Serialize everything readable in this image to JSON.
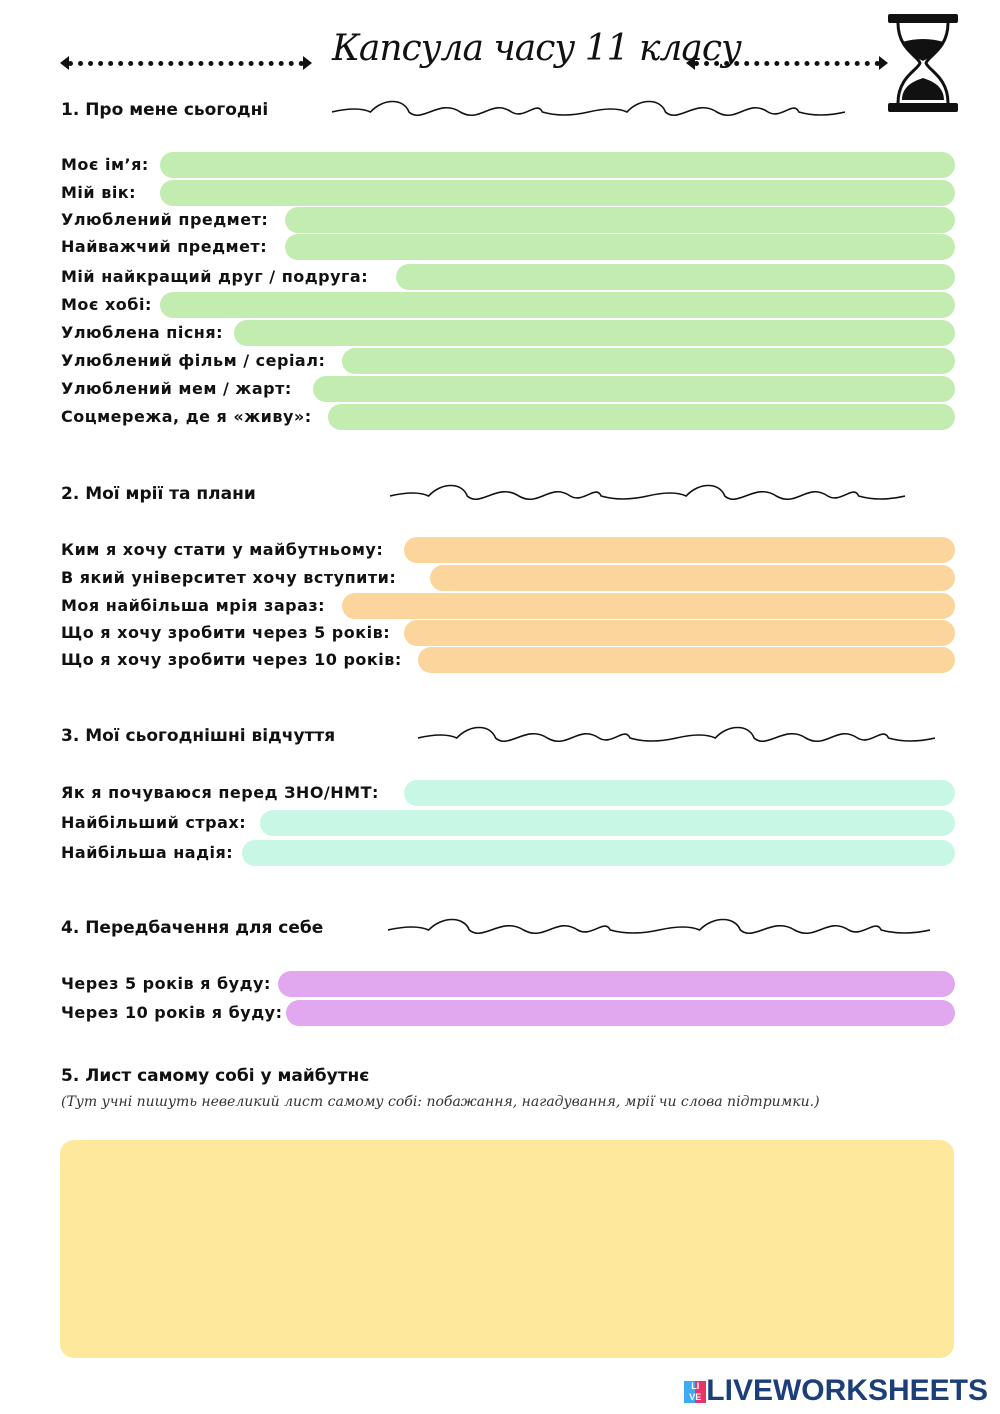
{
  "title": "Капсула часу 11 класу",
  "icons": {
    "header": "hourglass-icon",
    "divider": "swirl-ornament"
  },
  "colors": {
    "section1": "#c2ecb0",
    "section2": "#fcd59c",
    "section3": "#c8f7e6",
    "section4": "#e1a8ef",
    "letter": "#fde89b"
  },
  "sections": [
    {
      "heading": "1. Про мене сьогодні",
      "fields": [
        "Моє ім’я:",
        "Мій вік:",
        "Улюблений предмет:",
        "Найважчий предмет:",
        "Мій найкращий друг / подруга:",
        "Моє хобі:",
        "Улюблена пісня:",
        "Улюблений фільм / серіал:",
        "Улюблений мем / жарт:",
        "Соцмережа, де я «живу»:"
      ]
    },
    {
      "heading": "2. Мої мрії та плани",
      "fields": [
        "Ким я хочу стати у майбутньому:",
        "В який університет хочу вступити:",
        "Моя найбільша мрія зараз:",
        "Що я хочу зробити через 5 років:",
        "Що я хочу зробити через 10 років:"
      ]
    },
    {
      "heading": "3. Мої сьогоднішні відчуття",
      "fields": [
        "Як я почуваюся перед ЗНО/НМТ:",
        "Найбільший страх:",
        "Найбільша надія:"
      ]
    },
    {
      "heading": "4. Передбачення для себе",
      "fields": [
        "Через 5 років я буду:",
        "Через 10 років я буду:"
      ]
    },
    {
      "heading": "5. Лист самому собі у майбутнє",
      "note": "(Тут учні пишуть невеликий лист самому собі: побажання, нагадування, мрії чи слова підтримки.)"
    }
  ],
  "watermark": "LIVEWORKSHEETS"
}
